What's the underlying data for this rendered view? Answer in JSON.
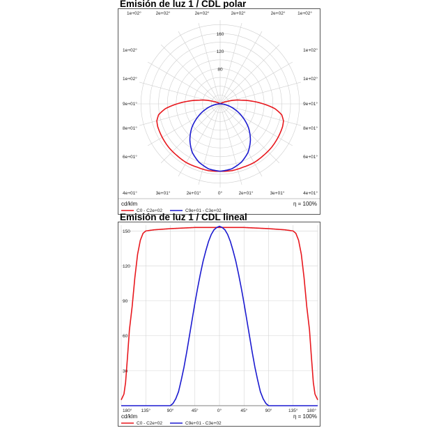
{
  "charts": [
    {
      "title": "Emisión de luz 1 / CDL polar",
      "unit": "cd/klm",
      "efficiency": "η = 100%"
    },
    {
      "title": "Emisión de luz 1 / CDL lineal",
      "unit": "cd/klm",
      "efficiency": "η = 100%"
    }
  ],
  "chart_data": [
    {
      "type": "polar",
      "title": "Emisión de luz 1 / CDL polar",
      "unit": "cd/klm",
      "radial_ticks": [
        "80",
        "120",
        "160"
      ],
      "angle_labels": {
        "top": [
          "1e+02°",
          "2e+02°",
          "2e+02°",
          "2e+02°",
          "2e+02°",
          "1e+02°"
        ],
        "left": [
          "1e+02°",
          "1e+02°",
          "9e+01°",
          "8e+01°",
          "6e+01°"
        ],
        "right": [
          "1e+02°",
          "1e+02°",
          "9e+01°",
          "8e+01°",
          "6e+01°"
        ],
        "bottom": [
          "4e+01°",
          "3e+01°",
          "2e+01°",
          "0°",
          "2e+01°",
          "3e+01°",
          "4e+01°"
        ]
      },
      "series": [
        {
          "name": "C0 - C2e+02",
          "color": "#e8171d",
          "points": [
            [
              0,
              153
            ],
            [
              10,
              154
            ],
            [
              20,
              153
            ],
            [
              30,
              154
            ],
            [
              40,
              153
            ],
            [
              50,
              153
            ],
            [
              60,
              152
            ],
            [
              70,
              151
            ],
            [
              75,
              149
            ],
            [
              80,
              142
            ],
            [
              85,
              125
            ],
            [
              90,
              98
            ],
            [
              95,
              72
            ],
            [
              100,
              48
            ],
            [
              110,
              15
            ],
            [
              120,
              3
            ],
            [
              130,
              0
            ]
          ]
        },
        {
          "name": "C9e+01 - C3e+02",
          "color": "#1b1ad0",
          "points": [
            [
              0,
              153
            ],
            [
              10,
              150
            ],
            [
              20,
              141
            ],
            [
              30,
              127
            ],
            [
              40,
              107
            ],
            [
              50,
              84
            ],
            [
              60,
              58
            ],
            [
              70,
              34
            ],
            [
              80,
              14
            ],
            [
              85,
              6
            ],
            [
              90,
              2
            ],
            [
              100,
              0
            ]
          ]
        }
      ]
    },
    {
      "type": "line",
      "title": "Emisión de luz 1 / CDL lineal",
      "ylabel": "cd/klm",
      "x_tick_labels": [
        "180°",
        "135°",
        "90°",
        "45°",
        "0°",
        "45°",
        "90°",
        "135°",
        "180°"
      ],
      "y_ticks": [
        30,
        60,
        90,
        120,
        150
      ],
      "xlim": [
        -180,
        180
      ],
      "ylim": [
        0,
        155
      ],
      "series": [
        {
          "name": "C0 - C2e+02",
          "color": "#e8171d",
          "points": [
            [
              -180,
              5
            ],
            [
              -175,
              10
            ],
            [
              -172,
              20
            ],
            [
              -168,
              45
            ],
            [
              -165,
              65
            ],
            [
              -160,
              85
            ],
            [
              -155,
              110
            ],
            [
              -150,
              130
            ],
            [
              -145,
              142
            ],
            [
              -140,
              148
            ],
            [
              -135,
              150
            ],
            [
              -120,
              151
            ],
            [
              -90,
              152
            ],
            [
              -45,
              153
            ],
            [
              0,
              153
            ],
            [
              45,
              153
            ],
            [
              90,
              152
            ],
            [
              120,
              151
            ],
            [
              135,
              150
            ],
            [
              140,
              148
            ],
            [
              145,
              142
            ],
            [
              150,
              130
            ],
            [
              155,
              110
            ],
            [
              160,
              85
            ],
            [
              165,
              65
            ],
            [
              168,
              45
            ],
            [
              172,
              20
            ],
            [
              175,
              10
            ],
            [
              180,
              5
            ]
          ]
        },
        {
          "name": "C9e+01 - C3e+02",
          "color": "#1b1ad0",
          "points": [
            [
              -180,
              0
            ],
            [
              -90,
              0
            ],
            [
              -85,
              2
            ],
            [
              -80,
              6
            ],
            [
              -75,
              12
            ],
            [
              -70,
              22
            ],
            [
              -65,
              33
            ],
            [
              -60,
              46
            ],
            [
              -55,
              60
            ],
            [
              -50,
              74
            ],
            [
              -45,
              88
            ],
            [
              -40,
              101
            ],
            [
              -35,
              113
            ],
            [
              -30,
              124
            ],
            [
              -25,
              133
            ],
            [
              -20,
              141
            ],
            [
              -15,
              147
            ],
            [
              -10,
              151
            ],
            [
              -5,
              153
            ],
            [
              0,
              154
            ],
            [
              5,
              153
            ],
            [
              10,
              151
            ],
            [
              15,
              147
            ],
            [
              20,
              141
            ],
            [
              25,
              133
            ],
            [
              30,
              124
            ],
            [
              35,
              113
            ],
            [
              40,
              101
            ],
            [
              45,
              88
            ],
            [
              50,
              74
            ],
            [
              55,
              60
            ],
            [
              60,
              46
            ],
            [
              65,
              33
            ],
            [
              70,
              22
            ],
            [
              75,
              12
            ],
            [
              80,
              6
            ],
            [
              85,
              2
            ],
            [
              90,
              0
            ],
            [
              180,
              0
            ]
          ]
        }
      ]
    }
  ]
}
